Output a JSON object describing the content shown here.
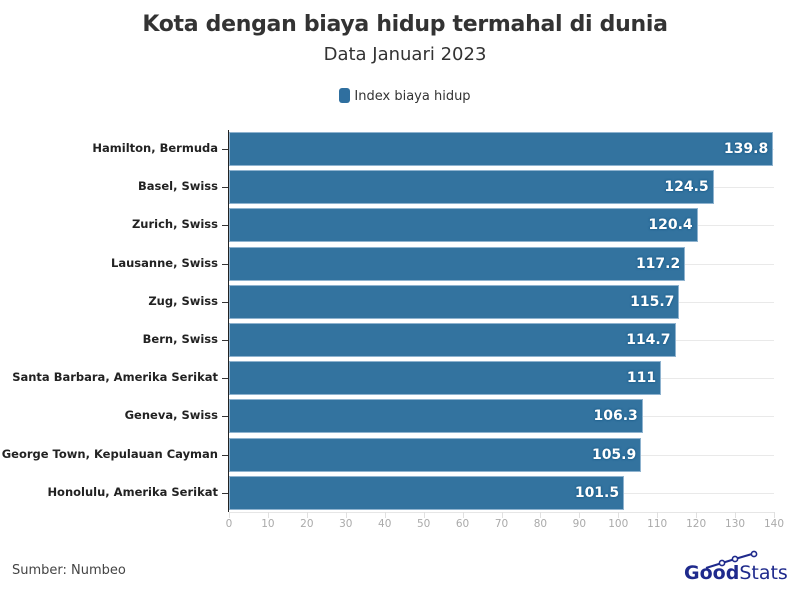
{
  "header": {
    "title": "Kota dengan biaya hidup termahal di dunia",
    "subtitle": "Data Januari 2023"
  },
  "legend": {
    "label": "Index biaya hidup",
    "color": "#2f6f9f"
  },
  "footer": {
    "source": "Sumber: Numbeo",
    "logo_bold": "Good",
    "logo_light": "Stats"
  },
  "colors": {
    "bar": "#33739f",
    "grid": "#e9e9e9",
    "logo": "#1f2a8c"
  },
  "chart_data": {
    "type": "bar",
    "orientation": "horizontal",
    "title": "Kota dengan biaya hidup termahal di dunia",
    "subtitle": "Data Januari 2023",
    "xlabel": "",
    "ylabel": "",
    "xlim": [
      0,
      140
    ],
    "x_ticks": [
      "0",
      "10",
      "20",
      "30",
      "40",
      "50",
      "60",
      "70",
      "80",
      "90",
      "100",
      "110",
      "120",
      "130",
      "140"
    ],
    "grid": true,
    "legend_position": "top",
    "categories": [
      "Hamilton, Bermuda",
      "Basel, Swiss",
      "Zurich, Swiss",
      "Lausanne, Swiss",
      "Zug, Swiss",
      "Bern, Swiss",
      "Santa Barbara, Amerika Serikat",
      "Geneva, Swiss",
      "George Town, Kepulauan Cayman",
      "Honolulu, Amerika Serikat"
    ],
    "series": [
      {
        "name": "Index biaya hidup",
        "values": [
          139.8,
          124.5,
          120.4,
          117.2,
          115.7,
          114.7,
          111,
          106.3,
          105.9,
          101.5
        ],
        "labels": [
          "139.8",
          "124.5",
          "120.4",
          "117.2",
          "115.7",
          "114.7",
          "111",
          "106.3",
          "105.9",
          "101.5"
        ]
      }
    ],
    "source": "Sumber: Numbeo"
  }
}
